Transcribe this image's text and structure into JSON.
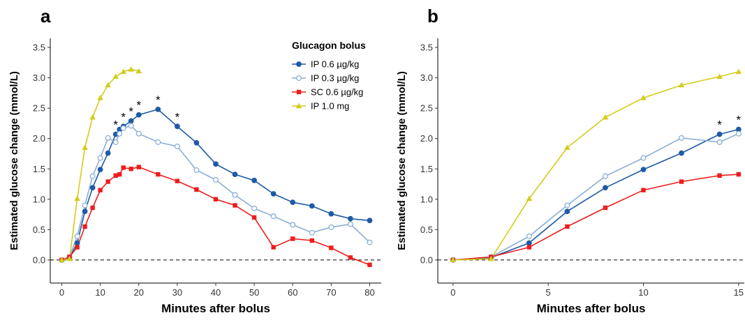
{
  "panels": [
    {
      "letter": "a",
      "xlabel": "Minutes after bolus",
      "ylabel": "Estimated glucose change (mmol/L)",
      "xlim": [
        -3,
        83
      ],
      "ylim": [
        -0.38,
        3.65
      ],
      "xticks": [
        0,
        10,
        20,
        30,
        40,
        50,
        60,
        70,
        80
      ],
      "yticks": [
        0.0,
        0.5,
        1.0,
        1.5,
        2.0,
        2.5,
        3.0,
        3.5
      ],
      "legend": true,
      "asterisk_x": [
        14,
        16,
        18,
        20,
        25,
        30
      ],
      "asterisk_text": "*"
    },
    {
      "letter": "b",
      "xlabel": "Minutes after bolus",
      "ylabel": "Estimated glucose change (mmol/L)",
      "xlim": [
        -0.8,
        15.3
      ],
      "ylim": [
        -0.38,
        3.65
      ],
      "xticks": [
        0,
        5,
        10,
        15
      ],
      "yticks": [
        0.0,
        0.5,
        1.0,
        1.5,
        2.0,
        2.5,
        3.0,
        3.5
      ],
      "legend": false,
      "asterisk_x": [
        14,
        15
      ],
      "asterisk_text": "*"
    }
  ],
  "legend": {
    "title": "Glucagon bolus",
    "placement": "top-right"
  },
  "chart_data": [
    {
      "type": "line",
      "xlabel": "Minutes after bolus",
      "ylabel": "Estimated glucose change (mmol/L)",
      "xlim": [
        -3,
        83
      ],
      "ylim": [
        -0.38,
        3.65
      ],
      "grid": false,
      "reference_line_y": 0,
      "series": [
        {
          "name": "IP 0.6 µg/kg",
          "color": "#1F5AA6",
          "marker": "filled-circle",
          "x": [
            0,
            2,
            4,
            6,
            8,
            10,
            12,
            14,
            15,
            16,
            18,
            20,
            25,
            30,
            35,
            40,
            45,
            50,
            55,
            60,
            65,
            70,
            75,
            80
          ],
          "y": [
            0.0,
            0.04,
            0.28,
            0.8,
            1.19,
            1.49,
            1.76,
            2.07,
            2.15,
            2.2,
            2.29,
            2.39,
            2.48,
            2.2,
            1.93,
            1.58,
            1.41,
            1.31,
            1.09,
            0.95,
            0.89,
            0.76,
            0.68,
            0.65
          ]
        },
        {
          "name": "IP 0.3 µg/kg",
          "color": "#89AFD6",
          "marker": "open-circle",
          "x": [
            0,
            2,
            4,
            6,
            8,
            10,
            12,
            14,
            15,
            16,
            18,
            20,
            25,
            30,
            35,
            40,
            45,
            50,
            55,
            60,
            65,
            70,
            75,
            80
          ],
          "y": [
            0.0,
            0.05,
            0.39,
            0.9,
            1.38,
            1.68,
            2.01,
            1.94,
            2.08,
            2.17,
            2.21,
            2.08,
            1.94,
            1.87,
            1.48,
            1.32,
            1.07,
            0.85,
            0.72,
            0.58,
            0.45,
            0.54,
            0.59,
            0.29
          ]
        },
        {
          "name": "SC 0.6 µg/kg",
          "color": "#EE1C1C",
          "marker": "filled-square",
          "x": [
            0,
            2,
            4,
            6,
            8,
            10,
            12,
            14,
            15,
            16,
            18,
            20,
            25,
            30,
            35,
            40,
            45,
            50,
            55,
            60,
            65,
            70,
            75,
            80
          ],
          "y": [
            0.0,
            0.05,
            0.21,
            0.55,
            0.86,
            1.15,
            1.29,
            1.39,
            1.41,
            1.52,
            1.5,
            1.53,
            1.41,
            1.3,
            1.16,
            1.0,
            0.9,
            0.7,
            0.21,
            0.35,
            0.32,
            0.2,
            0.04,
            -0.08
          ]
        },
        {
          "name": "IP 1.0 mg",
          "color": "#D4CC1A",
          "marker": "filled-triangle",
          "x": [
            0,
            2,
            4,
            6,
            8,
            10,
            12,
            14,
            16,
            18,
            20
          ],
          "y": [
            0.0,
            0.02,
            1.01,
            1.85,
            2.35,
            2.67,
            2.88,
            3.02,
            3.1,
            3.14,
            3.11
          ]
        }
      ]
    },
    {
      "type": "line",
      "xlabel": "Minutes after bolus",
      "ylabel": "Estimated glucose change (mmol/L)",
      "xlim": [
        -0.8,
        15.3
      ],
      "ylim": [
        -0.38,
        3.65
      ],
      "grid": false,
      "reference_line_y": 0,
      "series": [
        {
          "name": "IP 0.6 µg/kg",
          "color": "#1F5AA6",
          "marker": "filled-circle",
          "x": [
            0,
            2,
            4,
            6,
            8,
            10,
            12,
            14,
            15
          ],
          "y": [
            0.0,
            0.04,
            0.28,
            0.8,
            1.19,
            1.49,
            1.76,
            2.07,
            2.15
          ]
        },
        {
          "name": "IP 0.3 µg/kg",
          "color": "#89AFD6",
          "marker": "open-circle",
          "x": [
            0,
            2,
            4,
            6,
            8,
            10,
            12,
            14,
            15
          ],
          "y": [
            0.0,
            0.05,
            0.39,
            0.9,
            1.38,
            1.68,
            2.01,
            1.94,
            2.08
          ]
        },
        {
          "name": "SC 0.6 µg/kg",
          "color": "#EE1C1C",
          "marker": "filled-square",
          "x": [
            0,
            2,
            4,
            6,
            8,
            10,
            12,
            14,
            15
          ],
          "y": [
            0.0,
            0.05,
            0.21,
            0.55,
            0.86,
            1.15,
            1.29,
            1.39,
            1.41
          ]
        },
        {
          "name": "IP 1.0 mg",
          "color": "#D4CC1A",
          "marker": "filled-triangle",
          "x": [
            0,
            2,
            4,
            6,
            8,
            10,
            12,
            14,
            15
          ],
          "y": [
            0.0,
            0.02,
            1.01,
            1.85,
            2.35,
            2.67,
            2.88,
            3.02,
            3.1
          ]
        }
      ]
    }
  ]
}
